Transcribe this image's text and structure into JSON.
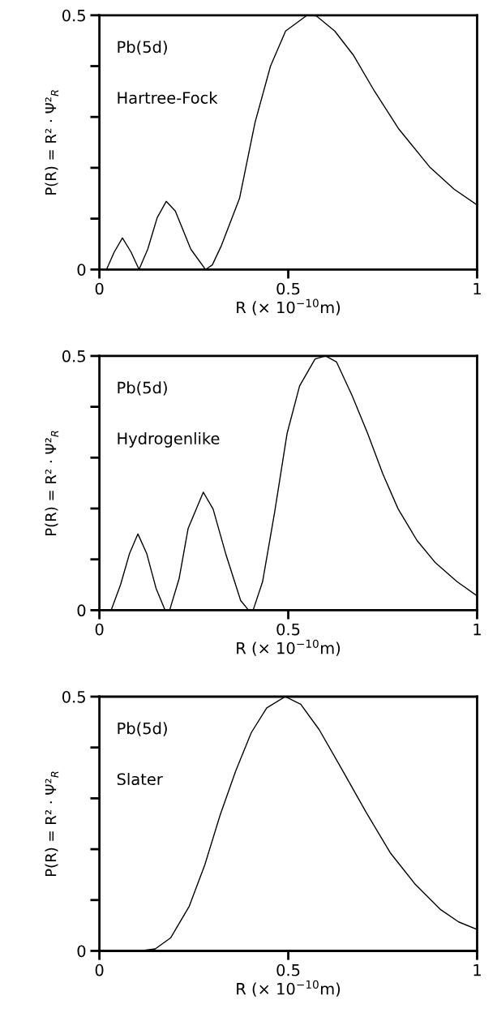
{
  "chart_data": [
    {
      "type": "line",
      "xlabel": "R (× 10$^{−10}$m)",
      "annotations": [
        "Pb(5d)",
        "Hartree-Fock"
      ],
      "ylabel": "P(R) = R² · Ψ²$_{R}$",
      "xlim": [
        0,
        1
      ],
      "ylim": [
        0,
        0.5
      ],
      "xticks": [
        0,
        0.5,
        1
      ],
      "yticks": [
        0,
        {
          "value": 0.1,
          "label": null
        },
        {
          "value": 0.2,
          "label": null
        },
        {
          "value": 0.3,
          "label": null
        },
        {
          "value": 0.4,
          "label": null
        },
        0.5
      ],
      "grid": false,
      "series": [
        {
          "color": "#000000",
          "x": [
            0,
            0.019,
            0.039,
            0.061,
            0.084,
            0.105,
            0.128,
            0.153,
            0.177,
            0.201,
            0.242,
            0.281,
            0.299,
            0.323,
            0.371,
            0.412,
            0.453,
            0.493,
            0.55,
            0.574,
            0.623,
            0.672,
            0.728,
            0.793,
            0.874,
            0.939,
            1.0
          ],
          "values": [
            0,
            0,
            0.034,
            0.062,
            0.034,
            0,
            0.04,
            0.102,
            0.134,
            0.115,
            0.04,
            0,
            0.009,
            0.047,
            0.14,
            0.289,
            0.4,
            0.469,
            0.5,
            0.499,
            0.469,
            0.422,
            0.351,
            0.276,
            0.202,
            0.158,
            0.127
          ]
        }
      ]
    },
    {
      "type": "line",
      "xlabel": "R (× 10$^{−10}$m)",
      "ylabel": "P(R) = R² · Ψ²$_{R}$",
      "annotations": [
        "Pb(5d)",
        "Hydrogenlike"
      ],
      "xlim": [
        0,
        1
      ],
      "ylim": [
        0,
        0.5
      ],
      "xticks": [
        0,
        0.5,
        1
      ],
      "yticks": [
        0,
        {
          "value": 0.1,
          "label": null
        },
        {
          "value": 0.2,
          "label": null
        },
        {
          "value": 0.3,
          "label": null
        },
        {
          "value": 0.4,
          "label": null
        },
        0.5
      ],
      "grid": false,
      "series": [
        {
          "color": "#000000",
          "x": [
            0,
            0.031,
            0.056,
            0.08,
            0.102,
            0.125,
            0.15,
            0.174,
            0.186,
            0.211,
            0.235,
            0.275,
            0.301,
            0.334,
            0.374,
            0.395,
            0.407,
            0.432,
            0.464,
            0.497,
            0.53,
            0.571,
            0.599,
            0.628,
            0.669,
            0.71,
            0.751,
            0.791,
            0.841,
            0.89,
            0.947,
            1.0
          ],
          "values": [
            0,
            0,
            0.05,
            0.112,
            0.15,
            0.112,
            0.043,
            0,
            0,
            0.062,
            0.161,
            0.232,
            0.199,
            0.112,
            0.019,
            0,
            0,
            0.056,
            0.193,
            0.348,
            0.441,
            0.494,
            0.5,
            0.488,
            0.422,
            0.348,
            0.267,
            0.199,
            0.137,
            0.093,
            0.056,
            0.028
          ]
        }
      ]
    },
    {
      "type": "line",
      "xlabel": "R (× 10$^{−10}$m)",
      "ylabel": "P(R) = R² · Ψ²$_{R}$",
      "annotations": [
        "Pb(5d)",
        "Slater"
      ],
      "xlim": [
        0,
        1
      ],
      "ylim": [
        0,
        0.5
      ],
      "xticks": [
        0,
        0.5,
        1
      ],
      "yticks": [
        0,
        {
          "value": 0.1,
          "label": null
        },
        {
          "value": 0.2,
          "label": null
        },
        {
          "value": 0.3,
          "label": null
        },
        {
          "value": 0.4,
          "label": null
        },
        0.5
      ],
      "grid": false,
      "series": [
        {
          "color": "#000000",
          "x": [
            0,
            0.107,
            0.148,
            0.189,
            0.238,
            0.279,
            0.32,
            0.361,
            0.402,
            0.443,
            0.492,
            0.533,
            0.582,
            0.639,
            0.705,
            0.77,
            0.836,
            0.902,
            0.951,
            1.0
          ],
          "values": [
            0,
            0,
            0.004,
            0.026,
            0.088,
            0.169,
            0.268,
            0.354,
            0.429,
            0.478,
            0.5,
            0.485,
            0.435,
            0.361,
            0.274,
            0.193,
            0.131,
            0.082,
            0.057,
            0.042
          ]
        }
      ]
    }
  ]
}
